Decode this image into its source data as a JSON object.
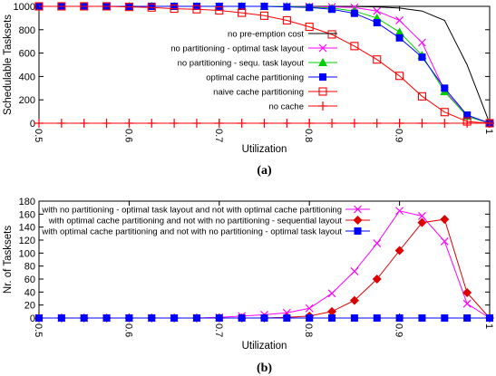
{
  "chart_data": [
    {
      "type": "line",
      "caption": "(a)",
      "xlabel": "Utilization",
      "ylabel": "Schedulable Tasksets",
      "xlim": [
        0.5,
        1.0
      ],
      "ylim": [
        0,
        1000
      ],
      "xticks": [
        "0.5",
        "0.6",
        "0.7",
        "0.8",
        "0.9",
        "1"
      ],
      "yticks": [
        "0",
        "200",
        "400",
        "600",
        "800",
        "1000"
      ],
      "legend_position": "right",
      "x": [
        0.5,
        0.525,
        0.55,
        0.575,
        0.6,
        0.625,
        0.65,
        0.675,
        0.7,
        0.725,
        0.75,
        0.775,
        0.8,
        0.825,
        0.85,
        0.875,
        0.9,
        0.925,
        0.95,
        0.975,
        1.0
      ],
      "series": [
        {
          "name": "no pre-emption cost",
          "color": "#000000",
          "marker": "none",
          "values": [
            1000,
            1000,
            1000,
            1000,
            1000,
            1000,
            1000,
            1000,
            1000,
            1000,
            1000,
            1000,
            1000,
            1000,
            999,
            995,
            985,
            960,
            880,
            500,
            0
          ]
        },
        {
          "name": "no partitioning - optimal task layout",
          "color": "#ff00ff",
          "marker": "x",
          "values": [
            1000,
            1000,
            1000,
            1000,
            1000,
            1000,
            1000,
            1000,
            1000,
            1000,
            1000,
            1000,
            998,
            995,
            990,
            960,
            880,
            690,
            280,
            60,
            0
          ]
        },
        {
          "name": "no partitioning - sequ. task layout",
          "color": "#00cc00",
          "marker": "triangle",
          "values": [
            1000,
            1000,
            1000,
            1000,
            1000,
            1000,
            1000,
            1000,
            1000,
            1000,
            1000,
            1000,
            995,
            985,
            960,
            900,
            780,
            580,
            270,
            60,
            0
          ]
        },
        {
          "name": "optimal cache partitioning",
          "color": "#0000ff",
          "marker": "square",
          "values": [
            1000,
            1000,
            1000,
            1000,
            1000,
            1000,
            1000,
            1000,
            1000,
            1000,
            1000,
            995,
            990,
            975,
            940,
            860,
            730,
            565,
            300,
            70,
            0
          ]
        },
        {
          "name": "naive cache partitioning",
          "color": "#ff0000",
          "marker": "open-square",
          "values": [
            1000,
            1000,
            1000,
            1000,
            995,
            990,
            980,
            975,
            965,
            945,
            920,
            880,
            825,
            760,
            660,
            545,
            405,
            230,
            95,
            15,
            0
          ]
        },
        {
          "name": "no cache",
          "color": "#ff0000",
          "marker": "plus",
          "values": [
            0,
            0,
            0,
            0,
            0,
            0,
            0,
            0,
            0,
            0,
            0,
            0,
            0,
            0,
            0,
            0,
            0,
            0,
            0,
            0,
            0
          ]
        }
      ]
    },
    {
      "type": "line",
      "caption": "(b)",
      "xlabel": "Utilization",
      "ylabel": "Nr. of Tasksets",
      "xlim": [
        0.5,
        1.0
      ],
      "ylim": [
        0,
        180
      ],
      "xticks": [
        "0.5",
        "0.6",
        "0.7",
        "0.8",
        "0.9",
        "1"
      ],
      "yticks": [
        "0",
        "20",
        "40",
        "60",
        "80",
        "100",
        "120",
        "140",
        "160",
        "180"
      ],
      "legend_position": "top-left",
      "x": [
        0.5,
        0.525,
        0.55,
        0.575,
        0.6,
        0.625,
        0.65,
        0.675,
        0.7,
        0.725,
        0.75,
        0.775,
        0.8,
        0.825,
        0.85,
        0.875,
        0.9,
        0.925,
        0.95,
        0.975,
        1.0
      ],
      "series": [
        {
          "name": "with no partitioning - optimal task layout and not with optimal cache partitioning",
          "color": "#ff00ff",
          "marker": "x",
          "values": [
            0,
            0,
            0,
            0,
            0,
            0,
            0,
            0,
            1,
            3,
            5,
            8,
            15,
            38,
            72,
            115,
            165,
            157,
            118,
            22,
            0
          ]
        },
        {
          "name": "with optimal cache partitioning and not with no partitioning - sequential layout",
          "color": "#dd0000",
          "marker": "diamond",
          "values": [
            0,
            0,
            0,
            0,
            0,
            0,
            0,
            0,
            0,
            0,
            0,
            1,
            3,
            10,
            27,
            60,
            104,
            147,
            152,
            39,
            0
          ]
        },
        {
          "name": "with optimal cache partitioning and not with no partitioning - optimal task layout",
          "color": "#0000ff",
          "marker": "square",
          "values": [
            0,
            0,
            0,
            0,
            0,
            0,
            0,
            0,
            0,
            0,
            0,
            0,
            0,
            0,
            0,
            0,
            0,
            0,
            0,
            0,
            0
          ]
        }
      ]
    }
  ]
}
